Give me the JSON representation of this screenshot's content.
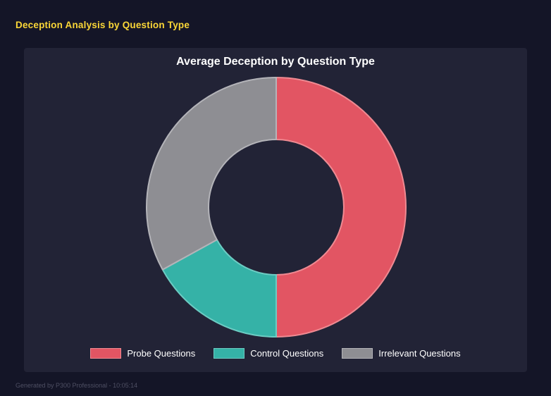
{
  "page": {
    "title": "Deception Analysis by Question Type",
    "footer": "Generated by P300 Professional - 10:05:14",
    "background_color": "#141527",
    "panel_color": "#222336",
    "title_color": "#fbd737"
  },
  "chart_data": {
    "type": "pie",
    "donut": true,
    "title": "Average Deception by Question Type",
    "labels": [
      "Probe Questions",
      "Control Questions",
      "Irrelevant Questions"
    ],
    "values": [
      50,
      17,
      33
    ],
    "colors": [
      "#e25563",
      "#35b2a7",
      "#8e8e93"
    ],
    "border_colors": [
      "#ef8a92",
      "#6cccc3",
      "#b4b4b9"
    ],
    "legend_position": "bottom",
    "cutout_ratio": 0.52
  }
}
